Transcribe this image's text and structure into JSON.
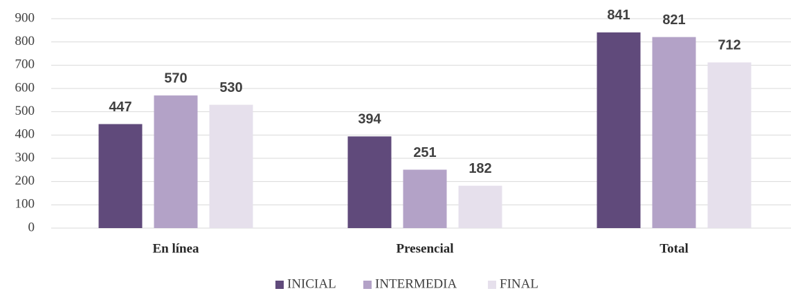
{
  "chart_data": {
    "type": "bar",
    "categories": [
      "En línea",
      "Presencial",
      "Total"
    ],
    "series": [
      {
        "name": "INICIAL",
        "color": "#604a7b",
        "values": [
          447,
          394,
          841
        ]
      },
      {
        "name": "INTERMEDIA",
        "color": "#b3a2c7",
        "values": [
          570,
          251,
          821
        ]
      },
      {
        "name": "FINAL",
        "color": "#e6e0ec",
        "values": [
          530,
          182,
          712
        ]
      }
    ],
    "ylim": [
      0,
      900
    ],
    "yticks": [
      0,
      100,
      200,
      300,
      400,
      500,
      600,
      700,
      800,
      900
    ],
    "grid": true,
    "legend": "bottom"
  }
}
